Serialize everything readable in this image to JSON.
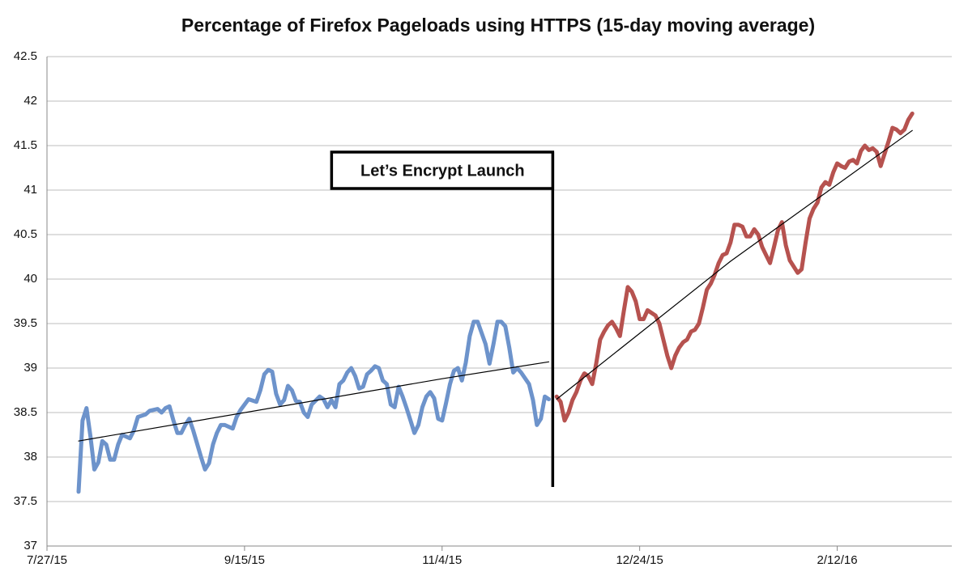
{
  "chart_data": {
    "type": "line",
    "title": "Percentage of Firefox Pageloads using HTTPS (15-day moving average)",
    "ylim": [
      37,
      42.5
    ],
    "yticks": [
      37,
      37.5,
      38,
      38.5,
      39,
      39.5,
      40,
      40.5,
      41,
      41.5,
      42,
      42.5
    ],
    "xlim": [
      "7/27/15",
      "3/12/16"
    ],
    "xticks": [
      "7/27/15",
      "9/15/15",
      "11/4/15",
      "12/24/15",
      "2/12/16"
    ],
    "grid": true,
    "annotation": {
      "text": "Let’s Encrypt Launch",
      "x": "12/2/15"
    },
    "series": [
      {
        "color": "#6d93cb",
        "linewidth": 5,
        "x": [
          "8/4/15",
          "8/5/15",
          "8/6/15",
          "8/7/15",
          "8/8/15",
          "8/9/15",
          "8/10/15",
          "8/11/15",
          "8/12/15",
          "8/13/15",
          "8/14/15",
          "8/15/15",
          "8/17/15",
          "8/18/15",
          "8/19/15",
          "8/21/15",
          "8/22/15",
          "8/24/15",
          "8/25/15",
          "8/26/15",
          "8/27/15",
          "8/28/15",
          "8/29/15",
          "8/30/15",
          "8/31/15",
          "9/1/15",
          "9/2/15",
          "9/4/15",
          "9/5/15",
          "9/6/15",
          "9/7/15",
          "9/8/15",
          "9/9/15",
          "9/10/15",
          "9/12/15",
          "9/13/15",
          "9/14/15",
          "9/15/15",
          "9/16/15",
          "9/18/15",
          "9/19/15",
          "9/20/15",
          "9/21/15",
          "9/22/15",
          "9/23/15",
          "9/24/15",
          "9/25/15",
          "9/26/15",
          "9/27/15",
          "9/28/15",
          "9/29/15",
          "9/30/15",
          "10/1/15",
          "10/2/15",
          "10/4/15",
          "10/5/15",
          "10/6/15",
          "10/7/15",
          "10/8/15",
          "10/9/15",
          "10/10/15",
          "10/11/15",
          "10/12/15",
          "10/13/15",
          "10/14/15",
          "10/15/15",
          "10/16/15",
          "10/17/15",
          "10/18/15",
          "10/19/15",
          "10/20/15",
          "10/21/15",
          "10/22/15",
          "10/23/15",
          "10/24/15",
          "10/25/15",
          "10/26/15",
          "10/27/15",
          "10/28/15",
          "10/29/15",
          "10/30/15",
          "10/31/15",
          "11/1/15",
          "11/2/15",
          "11/3/15",
          "11/4/15",
          "11/5/15",
          "11/6/15",
          "11/7/15",
          "11/8/15",
          "11/9/15",
          "11/10/15",
          "11/11/15",
          "11/12/15",
          "11/13/15",
          "11/15/15",
          "11/16/15",
          "11/17/15",
          "11/18/15",
          "11/19/15",
          "11/20/15",
          "11/21/15",
          "11/22/15",
          "11/23/15",
          "11/24/15",
          "11/26/15",
          "11/27/15",
          "11/28/15",
          "11/29/15",
          "11/30/15",
          "12/1/15"
        ],
        "values": [
          37.61,
          38.41,
          38.55,
          38.23,
          37.86,
          37.94,
          38.18,
          38.14,
          37.97,
          37.97,
          38.14,
          38.25,
          38.21,
          38.3,
          38.45,
          38.48,
          38.52,
          38.54,
          38.5,
          38.55,
          38.57,
          38.41,
          38.27,
          38.27,
          38.36,
          38.43,
          38.3,
          38.0,
          37.86,
          37.93,
          38.14,
          38.27,
          38.36,
          38.36,
          38.32,
          38.45,
          38.53,
          38.59,
          38.65,
          38.62,
          38.75,
          38.93,
          38.98,
          38.96,
          38.71,
          38.59,
          38.64,
          38.8,
          38.75,
          38.63,
          38.62,
          38.5,
          38.45,
          38.59,
          38.68,
          38.65,
          38.56,
          38.64,
          38.56,
          38.82,
          38.86,
          38.95,
          39.0,
          38.91,
          38.77,
          38.79,
          38.93,
          38.97,
          39.02,
          39.0,
          38.86,
          38.82,
          38.59,
          38.56,
          38.79,
          38.68,
          38.55,
          38.41,
          38.27,
          38.36,
          38.56,
          38.68,
          38.73,
          38.66,
          38.43,
          38.41,
          38.61,
          38.82,
          38.97,
          39.0,
          38.86,
          39.06,
          39.36,
          39.52,
          39.52,
          39.27,
          39.05,
          39.27,
          39.52,
          39.52,
          39.47,
          39.23,
          38.95,
          39.0,
          38.95,
          38.82,
          38.64,
          38.36,
          38.43,
          38.68,
          38.65
        ]
      },
      {
        "color": "#b6524f",
        "linewidth": 5,
        "x": [
          "12/3/15",
          "12/4/15",
          "12/5/15",
          "12/6/15",
          "12/7/15",
          "12/8/15",
          "12/9/15",
          "12/10/15",
          "12/11/15",
          "12/12/15",
          "12/13/15",
          "12/14/15",
          "12/15/15",
          "12/16/15",
          "12/17/15",
          "12/18/15",
          "12/19/15",
          "12/20/15",
          "12/21/15",
          "12/22/15",
          "12/23/15",
          "12/24/15",
          "12/25/15",
          "12/26/15",
          "12/28/15",
          "12/29/15",
          "12/30/15",
          "12/31/15",
          "1/1/16",
          "1/2/16",
          "1/3/16",
          "1/4/16",
          "1/5/16",
          "1/6/16",
          "1/7/16",
          "1/8/16",
          "1/9/16",
          "1/10/16",
          "1/11/16",
          "1/12/16",
          "1/13/16",
          "1/14/16",
          "1/15/16",
          "1/16/16",
          "1/17/16",
          "1/18/16",
          "1/19/16",
          "1/20/16",
          "1/21/16",
          "1/22/16",
          "1/23/16",
          "1/24/16",
          "1/25/16",
          "1/26/16",
          "1/27/16",
          "1/28/16",
          "1/29/16",
          "1/30/16",
          "1/31/16",
          "2/2/16",
          "2/3/16",
          "2/4/16",
          "2/5/16",
          "2/6/16",
          "2/7/16",
          "2/8/16",
          "2/9/16",
          "2/10/16",
          "2/11/16",
          "2/12/16",
          "2/13/16",
          "2/14/16",
          "2/15/16",
          "2/16/16",
          "2/17/16",
          "2/18/16",
          "2/19/16",
          "2/20/16",
          "2/21/16",
          "2/22/16",
          "2/23/16",
          "2/24/16",
          "2/25/16",
          "2/26/16",
          "2/27/16",
          "2/28/16",
          "2/29/16",
          "3/1/16",
          "3/2/16"
        ],
        "values": [
          38.68,
          38.62,
          38.41,
          38.5,
          38.64,
          38.73,
          38.86,
          38.94,
          38.91,
          38.82,
          39.05,
          39.32,
          39.41,
          39.48,
          39.52,
          39.45,
          39.36,
          39.64,
          39.91,
          39.86,
          39.75,
          39.55,
          39.55,
          39.65,
          39.59,
          39.5,
          39.32,
          39.14,
          39.0,
          39.14,
          39.23,
          39.29,
          39.32,
          39.41,
          39.43,
          39.5,
          39.68,
          39.88,
          39.95,
          40.05,
          40.18,
          40.27,
          40.29,
          40.41,
          40.61,
          40.61,
          40.59,
          40.48,
          40.48,
          40.56,
          40.5,
          40.36,
          40.27,
          40.18,
          40.36,
          40.55,
          40.64,
          40.38,
          40.21,
          40.07,
          40.11,
          40.41,
          40.68,
          40.79,
          40.86,
          41.03,
          41.09,
          41.06,
          41.2,
          41.3,
          41.27,
          41.25,
          41.32,
          41.34,
          41.3,
          41.44,
          41.5,
          41.45,
          41.47,
          41.43,
          41.27,
          41.41,
          41.55,
          41.7,
          41.68,
          41.64,
          41.68,
          41.79,
          41.86
        ]
      },
      {
        "color": "#000000",
        "linewidth": 1.2,
        "x": [
          "8/4/15",
          "9/23/15",
          "11/4/15",
          "12/1/15"
        ],
        "values": [
          38.18,
          38.56,
          38.88,
          39.07
        ]
      },
      {
        "color": "#000000",
        "linewidth": 1.2,
        "x": [
          "12/3/15",
          "1/16/16",
          "3/2/16"
        ],
        "values": [
          38.65,
          40.2,
          41.67
        ]
      }
    ]
  }
}
